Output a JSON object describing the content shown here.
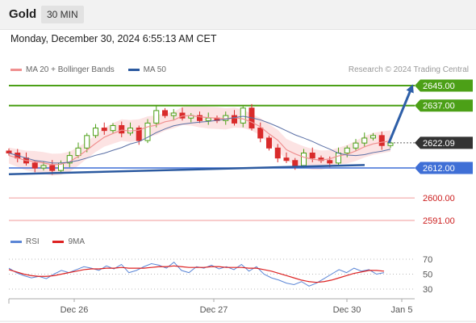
{
  "header": {
    "instrument": "Gold",
    "timeframe": "30 MIN",
    "timestamp": "Monday, December 30, 2024 6:55:13 AM CET"
  },
  "legend": {
    "item1": "MA 20 + Bollinger Bands",
    "item2": "MA 50",
    "credit": "Research © 2024 Trading Central"
  },
  "rsi_legend": {
    "item1": "RSI",
    "item2": "9MA"
  },
  "colors": {
    "green_level": "#4ca017",
    "blue_level": "#3f6fd6",
    "red_level": "#e85c5c",
    "ma20": "#f09090",
    "ma50": "#2c5aa0",
    "up_candle": "#4ca017",
    "down_candle": "#d92b2b",
    "current_price_label": "#333333",
    "rsi_line": "#5b86d6",
    "rsi_ma": "#dd2222",
    "arrow": "#2e5fa8"
  },
  "chart_data": {
    "type": "candlestick",
    "x_ticks": [
      "Dec 26",
      "Dec 27",
      "Dec 30",
      "Jan 5"
    ],
    "levels": [
      {
        "label": "2645.00",
        "value": 2645.0,
        "kind": "resistance",
        "color": "green"
      },
      {
        "label": "2637.00",
        "value": 2637.0,
        "kind": "resistance",
        "color": "green"
      },
      {
        "label": "2622.09",
        "value": 2622.09,
        "kind": "current",
        "color": "dark"
      },
      {
        "label": "2612.00",
        "value": 2612.0,
        "kind": "pivot",
        "color": "blue"
      },
      {
        "label": "2600.00",
        "value": 2600.0,
        "kind": "support",
        "color": "red"
      },
      {
        "label": "2591.00",
        "value": 2591.0,
        "kind": "support",
        "color": "red"
      }
    ],
    "projection": {
      "from": 2622.0,
      "to": 2645.0
    },
    "trendline": {
      "from": 2609.5,
      "to": 2613.2
    },
    "candle_key_closes": [
      2618,
      2616,
      2614,
      2612,
      2613,
      2611,
      2614,
      2617,
      2620,
      2625,
      2628,
      2627,
      2629,
      2626,
      2628,
      2623,
      2630,
      2635,
      2633,
      2634,
      2632,
      2633,
      2631,
      2632,
      2631,
      2633,
      2630,
      2636,
      2628,
      2624,
      2620,
      2616,
      2615,
      2613,
      2618,
      2616,
      2615,
      2614,
      2618,
      2620,
      2622,
      2624,
      2625,
      2621,
      2622
    ],
    "rsi": {
      "ticks": [
        70,
        50,
        30
      ],
      "ylim": [
        20,
        80
      ],
      "values": [
        58,
        52,
        48,
        45,
        47,
        44,
        50,
        55,
        52,
        56,
        60,
        58,
        55,
        61,
        57,
        63,
        52,
        55,
        60,
        64,
        62,
        58,
        66,
        55,
        52,
        60,
        58,
        62,
        57,
        60,
        56,
        63,
        54,
        60,
        50,
        45,
        42,
        38,
        36,
        40,
        34,
        38,
        44,
        50,
        56,
        52,
        58,
        54,
        56,
        50,
        52
      ],
      "ma": [
        56,
        53,
        50,
        48,
        47,
        47,
        48,
        50,
        52,
        54,
        56,
        57,
        57,
        58,
        58,
        59,
        58,
        58,
        58,
        59,
        60,
        60,
        61,
        60,
        59,
        59,
        59,
        60,
        60,
        59,
        59,
        59,
        58,
        58,
        56,
        54,
        51,
        48,
        45,
        42,
        40,
        39,
        40,
        42,
        45,
        48,
        51,
        53,
        55,
        55,
        54
      ]
    }
  }
}
